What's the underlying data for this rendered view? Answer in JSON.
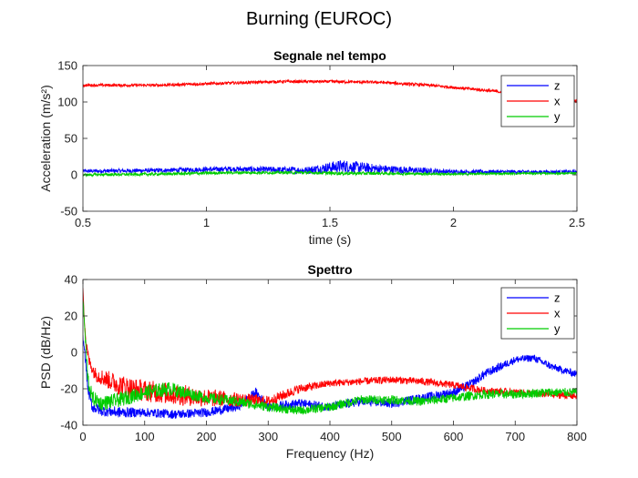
{
  "figure_title": "Burning (EUROC)",
  "chart_data": [
    {
      "type": "line",
      "title": "Segnale nel tempo",
      "xlabel": "time (s)",
      "ylabel": "Acceleration (m/s²)",
      "xlim": [
        0.5,
        2.5
      ],
      "ylim": [
        -50,
        150
      ],
      "xticks": [
        "0.5",
        "1",
        "1.5",
        "2",
        "2.5"
      ],
      "yticks": [
        "-50",
        "0",
        "50",
        "100",
        "150"
      ],
      "grid": false,
      "legend_position": "top-right",
      "series": [
        {
          "name": "z",
          "color": "#0000ff",
          "x": [
            0.5,
            0.8,
            1.1,
            1.4,
            1.55,
            1.7,
            2.0,
            2.3,
            2.5
          ],
          "y": [
            5,
            6,
            8,
            6,
            12,
            8,
            4,
            4,
            4
          ],
          "noise": [
            2.5,
            3,
            3.5,
            5,
            9,
            6,
            3,
            2.5,
            2.5
          ]
        },
        {
          "name": "x",
          "color": "#ff0000",
          "x": [
            0.5,
            0.8,
            1.0,
            1.3,
            1.5,
            1.7,
            1.9,
            2.1,
            2.3,
            2.4,
            2.5
          ],
          "y": [
            123,
            123,
            125,
            128,
            128,
            127,
            123,
            117,
            110,
            104,
            101
          ],
          "noise": [
            2,
            2,
            2,
            2,
            2,
            2,
            2,
            2,
            2,
            2,
            2
          ]
        },
        {
          "name": "y",
          "color": "#00cc00",
          "x": [
            0.5,
            0.8,
            1.1,
            1.4,
            1.55,
            1.7,
            2.0,
            2.3,
            2.5
          ],
          "y": [
            0,
            1,
            3,
            3,
            2,
            2,
            1,
            2,
            2
          ],
          "noise": [
            2,
            2,
            2,
            2,
            2.5,
            2,
            1.5,
            1.5,
            1.5
          ]
        }
      ]
    },
    {
      "type": "line",
      "title": "Spettro",
      "xlabel": "Frequency (Hz)",
      "ylabel": "PSD (dB/Hz)",
      "xlim": [
        0,
        800
      ],
      "ylim": [
        -40,
        40
      ],
      "xticks": [
        "0",
        "100",
        "200",
        "300",
        "400",
        "500",
        "600",
        "700",
        "800"
      ],
      "yticks": [
        "-40",
        "-20",
        "0",
        "20",
        "40"
      ],
      "grid": false,
      "legend_position": "top-right",
      "series": [
        {
          "name": "z",
          "color": "#0000ff",
          "x": [
            0,
            3,
            8,
            15,
            30,
            60,
            100,
            150,
            200,
            250,
            280,
            300,
            350,
            400,
            450,
            500,
            550,
            600,
            630,
            650,
            700,
            730,
            760,
            800
          ],
          "y": [
            8,
            0,
            -20,
            -30,
            -32,
            -33,
            -33,
            -34,
            -33,
            -30,
            -22,
            -30,
            -28,
            -30,
            -27,
            -28,
            -25,
            -22,
            -17,
            -12,
            -4,
            -3,
            -8,
            -12
          ],
          "noise": [
            2,
            2,
            3,
            3,
            3,
            3,
            2.5,
            2.5,
            2.5,
            2.5,
            2.5,
            2.5,
            2.5,
            2.5,
            2.5,
            2.5,
            2.5,
            2.5,
            2.5,
            2.5,
            2,
            2,
            2,
            2
          ]
        },
        {
          "name": "x",
          "color": "#ff0000",
          "x": [
            0,
            2,
            5,
            10,
            20,
            40,
            60,
            80,
            100,
            150,
            200,
            250,
            300,
            350,
            400,
            450,
            500,
            550,
            600,
            650,
            700,
            750,
            800
          ],
          "y": [
            36,
            20,
            5,
            -5,
            -12,
            -15,
            -18,
            -20,
            -21,
            -23,
            -25,
            -26,
            -27,
            -20,
            -17,
            -16,
            -15,
            -16,
            -18,
            -21,
            -22,
            -23,
            -24
          ],
          "noise": [
            1,
            2,
            3,
            3,
            4,
            5,
            6,
            6,
            6,
            6,
            5,
            4,
            3,
            2.5,
            2,
            2,
            2,
            2,
            2,
            2,
            2,
            2,
            2
          ]
        },
        {
          "name": "y",
          "color": "#00cc00",
          "x": [
            0,
            3,
            8,
            15,
            30,
            60,
            100,
            140,
            200,
            250,
            300,
            350,
            400,
            450,
            500,
            550,
            600,
            650,
            700,
            750,
            800
          ],
          "y": [
            30,
            12,
            -15,
            -25,
            -28,
            -26,
            -22,
            -20,
            -25,
            -27,
            -30,
            -32,
            -30,
            -26,
            -26,
            -27,
            -25,
            -23,
            -23,
            -22,
            -22
          ],
          "noise": [
            2,
            3,
            5,
            4,
            4,
            4,
            4,
            4,
            3,
            3,
            2.5,
            2.5,
            2.5,
            2.5,
            2.5,
            2.5,
            2.5,
            2.5,
            2.5,
            2.5,
            2.5
          ]
        }
      ]
    }
  ]
}
